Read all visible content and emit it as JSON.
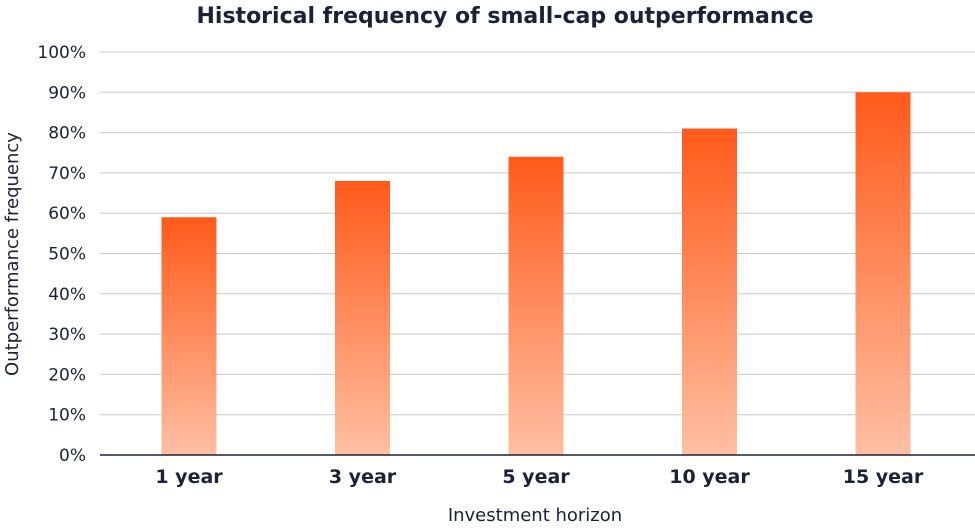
{
  "chart_data": {
    "type": "bar",
    "title": "Historical frequency of small-cap outperformance",
    "xlabel": "Investment horizon",
    "ylabel": "Outperformance frequency",
    "categories": [
      "1 year",
      "3 year",
      "5 year",
      "10 year",
      "15 year"
    ],
    "values": [
      59,
      68,
      74,
      81,
      90
    ],
    "unit": "%",
    "ylim": [
      0,
      100
    ],
    "yticks": [
      0,
      10,
      20,
      30,
      40,
      50,
      60,
      70,
      80,
      90,
      100
    ],
    "ytick_labels": [
      "0%",
      "10%",
      "20%",
      "30%",
      "40%",
      "50%",
      "60%",
      "70%",
      "80%",
      "90%",
      "100%"
    ],
    "grid": true,
    "legend": "none",
    "colors": {
      "bar_top": "#ff5a1a",
      "bar_bottom": "#ffbfa3",
      "text": "#1b2233",
      "grid": "#c8c8c8"
    }
  }
}
